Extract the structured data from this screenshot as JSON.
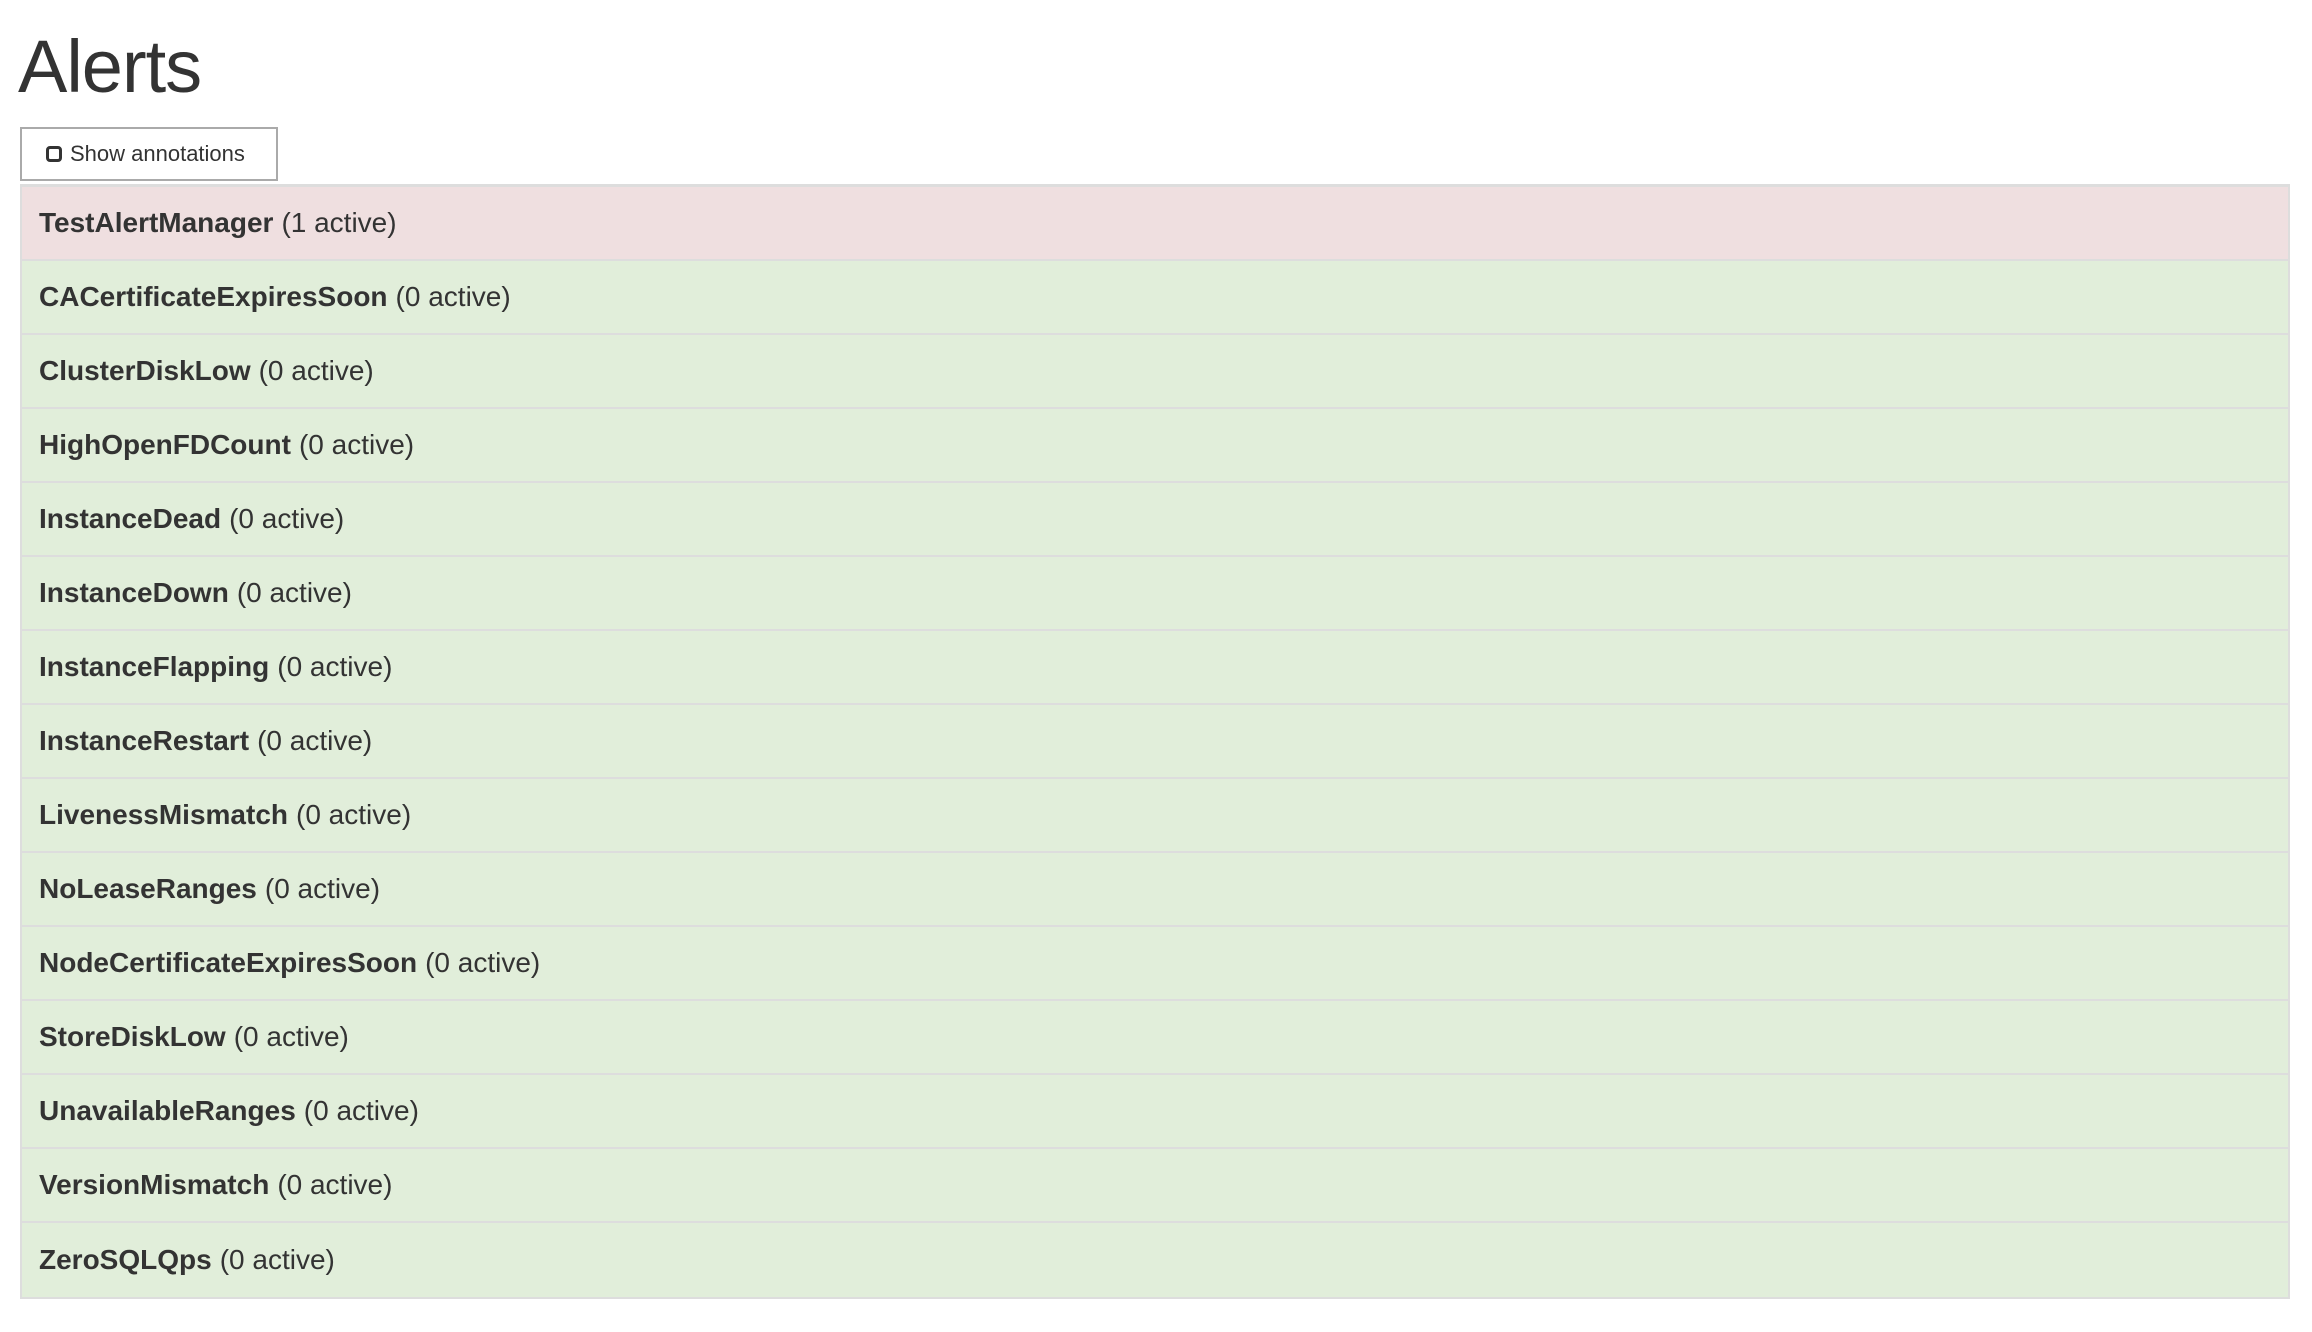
{
  "page": {
    "title": "Alerts"
  },
  "toolbar": {
    "show_annotations_label": "Show annotations",
    "show_annotations_checked": false
  },
  "colors": {
    "firing": "#efdfe0",
    "inactive": "#e1eeda",
    "border": "#dddddd"
  },
  "alerts": [
    {
      "name": "TestAlertManager",
      "status": "(1 active)",
      "active": 1
    },
    {
      "name": "CACertificateExpiresSoon",
      "status": "(0 active)",
      "active": 0
    },
    {
      "name": "ClusterDiskLow",
      "status": "(0 active)",
      "active": 0
    },
    {
      "name": "HighOpenFDCount",
      "status": "(0 active)",
      "active": 0
    },
    {
      "name": "InstanceDead",
      "status": "(0 active)",
      "active": 0
    },
    {
      "name": "InstanceDown",
      "status": "(0 active)",
      "active": 0
    },
    {
      "name": "InstanceFlapping",
      "status": "(0 active)",
      "active": 0
    },
    {
      "name": "InstanceRestart",
      "status": "(0 active)",
      "active": 0
    },
    {
      "name": "LivenessMismatch",
      "status": "(0 active)",
      "active": 0
    },
    {
      "name": "NoLeaseRanges",
      "status": "(0 active)",
      "active": 0
    },
    {
      "name": "NodeCertificateExpiresSoon",
      "status": "(0 active)",
      "active": 0
    },
    {
      "name": "StoreDiskLow",
      "status": "(0 active)",
      "active": 0
    },
    {
      "name": "UnavailableRanges",
      "status": "(0 active)",
      "active": 0
    },
    {
      "name": "VersionMismatch",
      "status": "(0 active)",
      "active": 0
    },
    {
      "name": "ZeroSQLQps",
      "status": "(0 active)",
      "active": 0
    }
  ]
}
